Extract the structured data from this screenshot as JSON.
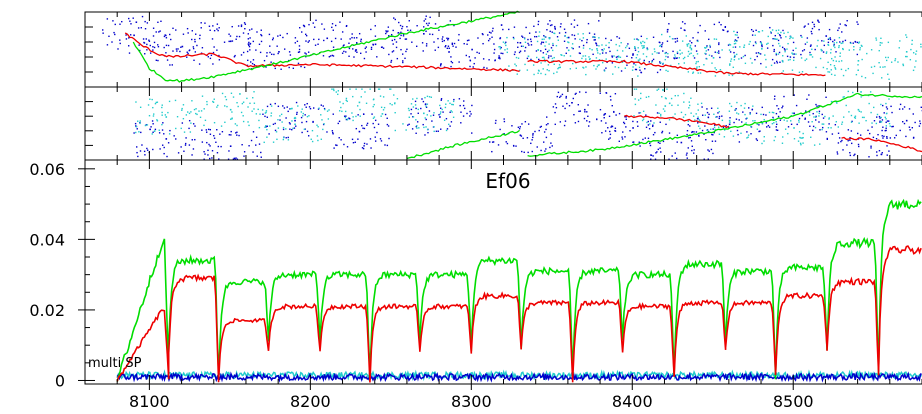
{
  "chart_data": [
    {
      "type": "scatter",
      "panel": "top",
      "title": "",
      "xlim": [
        8060,
        8580
      ],
      "series": [
        {
          "name": "",
          "color": "#0000cc",
          "style": "dots",
          "x": [
            8090,
            8120,
            8150,
            8180,
            8210,
            8240,
            8270,
            8300,
            8330,
            8360,
            8400,
            8440,
            8480,
            8520
          ],
          "y": [
            0.7,
            0.55,
            0.62,
            0.48,
            0.66,
            0.58,
            0.72,
            0.51,
            0.6,
            0.67,
            0.45,
            0.63,
            0.57,
            0.69
          ]
        },
        {
          "name": "",
          "color": "#22cccc",
          "style": "dots",
          "x": [
            8335,
            8360,
            8390,
            8420,
            8450,
            8480,
            8510,
            8540,
            8570
          ],
          "y": [
            0.42,
            0.5,
            0.38,
            0.46,
            0.4,
            0.52,
            0.44,
            0.36,
            0.48
          ]
        },
        {
          "name": "",
          "color": "#ee0000",
          "style": "line",
          "x": [
            8085,
            8095,
            8105,
            8115,
            8125,
            8140,
            8160,
            8200,
            8260,
            8330,
            8335,
            8395,
            8460,
            8520
          ],
          "y": [
            0.72,
            0.56,
            0.44,
            0.4,
            0.42,
            0.44,
            0.28,
            0.3,
            0.27,
            0.22,
            0.34,
            0.34,
            0.18,
            0.16
          ]
        },
        {
          "name": "",
          "color": "#00dd00",
          "style": "line",
          "x": [
            8090,
            8100,
            8110,
            8120,
            8140,
            8180,
            8220,
            8260,
            8300,
            8330
          ],
          "y": [
            0.6,
            0.25,
            0.1,
            0.08,
            0.14,
            0.32,
            0.52,
            0.72,
            0.88,
            1.0
          ]
        }
      ]
    },
    {
      "type": "scatter",
      "panel": "middle",
      "title": "",
      "xlim": [
        8060,
        8580
      ],
      "series": [
        {
          "name": "",
          "color": "#0000cc",
          "style": "dots",
          "x": [
            8110,
            8150,
            8190,
            8230,
            8280,
            8330,
            8370,
            8400,
            8430,
            8460,
            8500,
            8540,
            8570
          ],
          "y": [
            0.3,
            0.2,
            0.55,
            0.4,
            0.6,
            0.35,
            0.7,
            0.45,
            0.25,
            0.5,
            0.65,
            0.3,
            0.55
          ]
        },
        {
          "name": "",
          "color": "#22cccc",
          "style": "dots",
          "x": [
            8110,
            8150,
            8190,
            8230,
            8270,
            8420,
            8460,
            8500,
            8540
          ],
          "y": [
            0.6,
            0.7,
            0.5,
            0.8,
            0.65,
            0.75,
            0.55,
            0.45,
            0.7
          ]
        },
        {
          "name": "",
          "color": "#ee0000",
          "style": "line",
          "x": [
            8395,
            8420,
            8440,
            8460,
            8462,
            8520,
            8530,
            8550,
            8570,
            8580
          ],
          "y": [
            0.6,
            0.58,
            0.53,
            0.45,
            0.0,
            0.0,
            0.3,
            0.28,
            0.18,
            0.12
          ]
        },
        {
          "name": "",
          "color": "#00dd00",
          "style": "line",
          "x": [
            8260,
            8290,
            8330,
            8335,
            8380,
            8440,
            8500,
            8520,
            8540,
            8560,
            8580
          ],
          "y": [
            0.02,
            0.2,
            0.4,
            0.06,
            0.14,
            0.35,
            0.6,
            0.75,
            0.9,
            0.88,
            0.86
          ]
        }
      ]
    },
    {
      "type": "line",
      "panel": "main",
      "title": "Ef06",
      "annotation": "multi SP",
      "xlabel": "",
      "ylabel": "",
      "xlim": [
        8060,
        8580
      ],
      "ylim": [
        -0.001,
        0.0625
      ],
      "xticks": [
        8100,
        8200,
        8300,
        8400,
        8500
      ],
      "yticks": [
        0,
        0.02,
        0.04,
        0.06
      ],
      "ytick_labels": [
        "0",
        "0.02",
        "0.04",
        "0.06"
      ],
      "segment_starts": [
        8080,
        8112,
        8143,
        8174,
        8206,
        8237,
        8268,
        8300,
        8331,
        8363,
        8394,
        8426,
        8458,
        8489,
        8521,
        8553,
        8584
      ],
      "series": [
        {
          "name": "",
          "color": "#00dd00",
          "plateau": [
            0.039,
            0.034,
            0.028,
            0.03,
            0.03,
            0.03,
            0.03,
            0.034,
            0.031,
            0.031,
            0.03,
            0.033,
            0.031,
            0.032,
            0.039,
            0.05
          ],
          "valley": [
            0.001,
            0.01,
            0.001,
            0.011,
            0.011,
            0.001,
            0.011,
            0.009,
            0.009,
            0.001,
            0.011,
            0.001,
            0.01,
            0.001,
            0.009,
            0.002
          ]
        },
        {
          "name": "",
          "color": "#ee0000",
          "plateau": [
            0.02,
            0.029,
            0.017,
            0.021,
            0.021,
            0.021,
            0.021,
            0.024,
            0.022,
            0.022,
            0.021,
            0.022,
            0.022,
            0.024,
            0.028,
            0.037
          ],
          "valley": [
            0.0,
            0.007,
            0.0,
            0.008,
            0.008,
            0.0,
            0.008,
            0.008,
            0.009,
            0.0,
            0.008,
            0.001,
            0.009,
            0.002,
            0.009,
            0.002
          ]
        },
        {
          "name": "",
          "color": "#22cccc",
          "level": 0.0015,
          "noise": 0.0009
        },
        {
          "name": "",
          "color": "#0000cc",
          "level": 0.001,
          "noise": 0.0009
        }
      ]
    }
  ]
}
